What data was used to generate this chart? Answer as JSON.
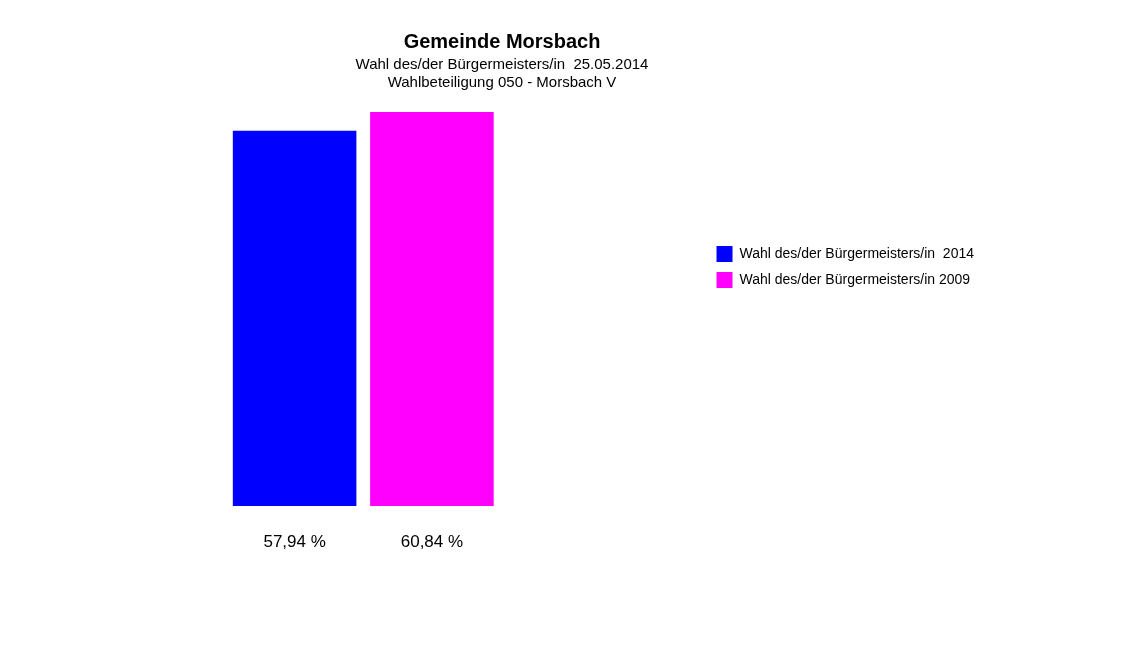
{
  "chart_data": {
    "type": "bar",
    "title": "Gemeinde Morsbach",
    "subtitle": "Wahl des/der Bürgermeisters/in  25.05.2014\nWahlbeteiligung 050 - Morsbach V",
    "categories": [
      null
    ],
    "series": [
      {
        "name": "Wahl des/der Bürgermeisters/in  2014",
        "color": "#0000ff",
        "values": [
          57.94
        ],
        "value_labels": [
          "57,94 %"
        ]
      },
      {
        "name": "Wahl des/der Bürgermeisters/in 2009",
        "color": "#ff00ff",
        "values": [
          60.84
        ],
        "value_labels": [
          "60,84 %"
        ]
      }
    ],
    "legend": "right",
    "grid": false
  }
}
